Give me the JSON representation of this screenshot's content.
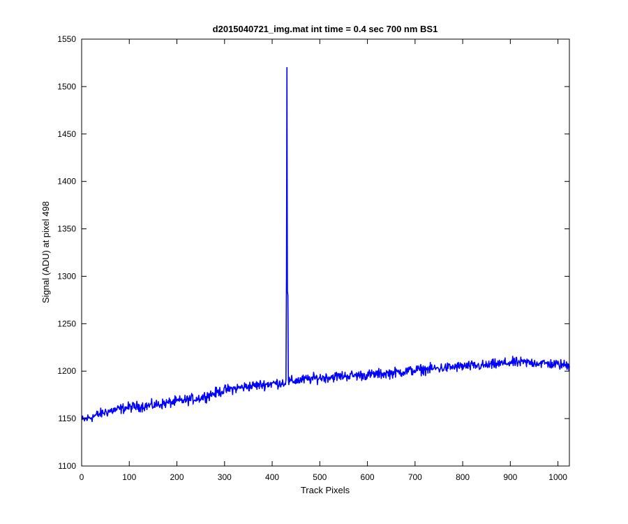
{
  "chart_data": {
    "type": "line",
    "title": "d2015040721_img.mat int time = 0.4 sec  700 nm BS1",
    "xlabel": "Track Pixels",
    "ylabel": "Signal (ADU) at pixel 498",
    "xlim": [
      0,
      1024
    ],
    "ylim": [
      1100,
      1550
    ],
    "xticks": [
      0,
      100,
      200,
      300,
      400,
      500,
      600,
      700,
      800,
      900,
      1000
    ],
    "yticks": [
      1100,
      1150,
      1200,
      1250,
      1300,
      1350,
      1400,
      1450,
      1500,
      1550
    ],
    "grid": false,
    "series": [
      {
        "color": "#0000ff",
        "x_range": [
          1,
          1024
        ],
        "trend_points": [
          [
            1,
            1148
          ],
          [
            50,
            1157
          ],
          [
            100,
            1162
          ],
          [
            150,
            1164
          ],
          [
            200,
            1168
          ],
          [
            250,
            1172
          ],
          [
            300,
            1180
          ],
          [
            350,
            1184
          ],
          [
            400,
            1187
          ],
          [
            425,
            1188
          ],
          [
            450,
            1190
          ],
          [
            500,
            1193
          ],
          [
            550,
            1195
          ],
          [
            600,
            1196
          ],
          [
            650,
            1198
          ],
          [
            700,
            1201
          ],
          [
            750,
            1203
          ],
          [
            800,
            1205
          ],
          [
            850,
            1206
          ],
          [
            900,
            1209
          ],
          [
            950,
            1209
          ],
          [
            1000,
            1207
          ],
          [
            1024,
            1206
          ]
        ],
        "noise_amplitude": 5,
        "spikes": [
          [
            430,
            1298
          ],
          [
            431,
            1520
          ],
          [
            432,
            1284
          ],
          [
            433,
            1280
          ]
        ]
      }
    ]
  }
}
